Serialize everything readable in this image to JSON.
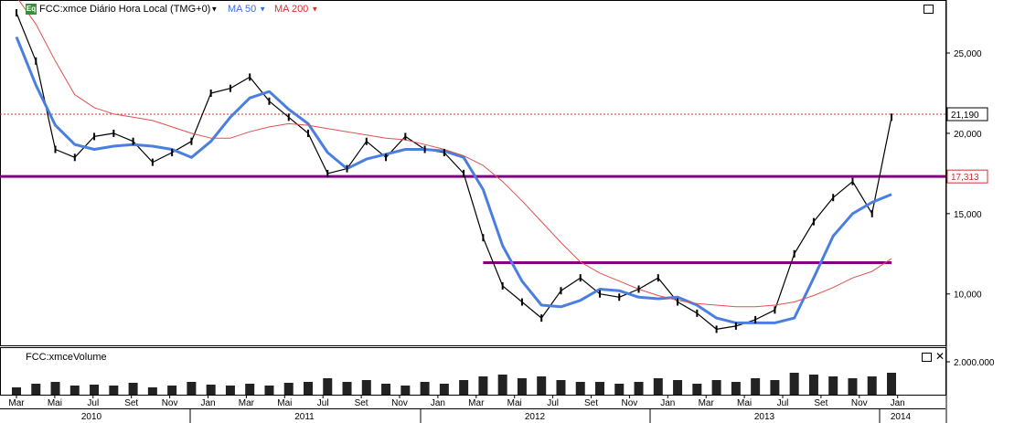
{
  "header": {
    "badge": "Eq",
    "title": "FCC:xmce Diário Hora Local (TMG+0)",
    "ma50_label": "MA 50",
    "ma200_label": "MA 200"
  },
  "volume_panel": {
    "title": "FCC:xmceVolume"
  },
  "colors": {
    "price": "#000000",
    "ma50": "#4a7fe0",
    "ma200": "#e05050",
    "level_line": "#800080",
    "dotted": "#d03030"
  },
  "chart_data": [
    {
      "type": "line",
      "title": "FCC:xmce Diário Hora Local (TMG+0)",
      "x_axis": {
        "months": [
          "Mar",
          "Mai",
          "Jul",
          "Set",
          "Nov",
          "Jan",
          "Mar",
          "Mai",
          "Jul",
          "Set",
          "Nov",
          "Jan",
          "Mar",
          "Mai",
          "Jul",
          "Set",
          "Nov",
          "Jan",
          "Mar",
          "Mai",
          "Jul",
          "Set",
          "Nov",
          "Jan"
        ],
        "years": [
          "2010",
          "2011",
          "2012",
          "2013",
          "2014"
        ]
      },
      "y_axis": {
        "ticks": [
          "25,000",
          "20,000",
          "15,000",
          "10,000"
        ],
        "ylim": [
          6800,
          28300
        ]
      },
      "x": [
        "2010-03",
        "2010-04",
        "2010-05",
        "2010-06",
        "2010-07",
        "2010-08",
        "2010-09",
        "2010-10",
        "2010-11",
        "2010-12",
        "2011-01",
        "2011-02",
        "2011-03",
        "2011-04",
        "2011-05",
        "2011-06",
        "2011-07",
        "2011-08",
        "2011-09",
        "2011-10",
        "2011-11",
        "2011-12",
        "2012-01",
        "2012-02",
        "2012-03",
        "2012-04",
        "2012-05",
        "2012-06",
        "2012-07",
        "2012-08",
        "2012-09",
        "2012-10",
        "2012-11",
        "2012-12",
        "2013-01",
        "2013-02",
        "2013-03",
        "2013-04",
        "2013-05",
        "2013-06",
        "2013-07",
        "2013-08",
        "2013-09",
        "2013-10",
        "2013-11",
        "2013-12"
      ],
      "series": [
        {
          "name": "FCC:xmce",
          "values": [
            27500,
            24500,
            19000,
            18500,
            19800,
            20000,
            19500,
            18200,
            18800,
            19500,
            22500,
            22800,
            23500,
            22000,
            21000,
            20000,
            17500,
            17800,
            19500,
            18500,
            19800,
            19000,
            18800,
            17500,
            13500,
            10500,
            9500,
            8500,
            10200,
            11000,
            10000,
            9800,
            10300,
            11000,
            9500,
            8800,
            7800,
            8000,
            8400,
            9000,
            12500,
            14500,
            16000,
            17000,
            15000,
            21000
          ]
        },
        {
          "name": "MA 50",
          "values": [
            26000,
            23000,
            20500,
            19300,
            19000,
            19200,
            19300,
            19200,
            19000,
            18500,
            19500,
            21000,
            22200,
            22600,
            21500,
            20600,
            18800,
            17800,
            18400,
            18700,
            19000,
            19000,
            18900,
            18500,
            16500,
            13000,
            10800,
            9300,
            9200,
            9600,
            10300,
            10200,
            9800,
            9700,
            9800,
            9300,
            8500,
            8200,
            8200,
            8200,
            8500,
            11000,
            13600,
            15000,
            15700,
            16200
          ]
        },
        {
          "name": "MA 200",
          "values": [
            28500,
            26800,
            24500,
            22400,
            21600,
            21200,
            21000,
            20800,
            20400,
            20000,
            19700,
            19700,
            20100,
            20400,
            20600,
            20500,
            20300,
            20100,
            19900,
            19700,
            19600,
            19300,
            19000,
            18600,
            18000,
            17000,
            15800,
            14500,
            13200,
            12000,
            11300,
            10800,
            10300,
            9900,
            9600,
            9400,
            9300,
            9200,
            9200,
            9300,
            9500,
            9900,
            10400,
            11000,
            11400,
            12200
          ]
        },
        {
          "name": "FCC:xmceVolume",
          "values": [
            400000,
            600000,
            700000,
            500000,
            550000,
            500000,
            650000,
            400000,
            500000,
            700000,
            550000,
            500000,
            600000,
            500000,
            650000,
            700000,
            900000,
            700000,
            800000,
            600000,
            500000,
            700000,
            600000,
            800000,
            1000000,
            1100000,
            900000,
            1000000,
            800000,
            700000,
            700000,
            600000,
            700000,
            900000,
            800000,
            600000,
            800000,
            700000,
            900000,
            800000,
            1200000,
            1100000,
            1000000,
            900000,
            1000000,
            1200000
          ]
        }
      ],
      "levels": [
        {
          "value": "21,190",
          "v": 21190,
          "style": "dotted"
        },
        {
          "value": "17,313",
          "v": 17313,
          "style": "solid"
        },
        {
          "v": 11950,
          "style": "solid",
          "from": "2012-03",
          "to": "2013-12"
        }
      ]
    },
    {
      "type": "bar",
      "title": "FCC:xmceVolume",
      "y_axis": {
        "ticks": [
          "2.000.000"
        ]
      }
    }
  ]
}
